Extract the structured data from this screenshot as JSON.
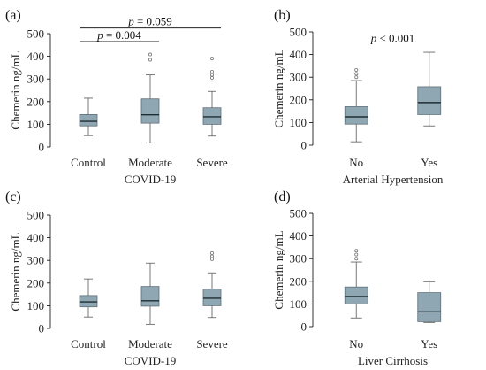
{
  "chart_data": [
    {
      "type": "box",
      "tag": "(a)",
      "ylabel": "Chemerin ng/mL",
      "xlabel": "COVID-19",
      "ylim": [
        0,
        500
      ],
      "yticks": [
        0,
        100,
        200,
        300,
        400,
        500
      ],
      "categories": [
        "Control",
        "Moderate",
        "Severe"
      ],
      "boxes": [
        {
          "min": 50,
          "q1": 93,
          "median": 113,
          "q3": 143,
          "max": 215,
          "outliers": []
        },
        {
          "min": 18,
          "q1": 105,
          "median": 142,
          "q3": 212,
          "max": 318,
          "outliers": [
            385,
            408
          ]
        },
        {
          "min": 48,
          "q1": 100,
          "median": 133,
          "q3": 173,
          "max": 245,
          "outliers": [
            305,
            318,
            332,
            390
          ]
        }
      ],
      "annotations": [
        {
          "from": 0,
          "to": 2,
          "y": 525,
          "prefix": "p",
          "text": " = 0.059"
        },
        {
          "from": 0,
          "to": 1,
          "y": 465,
          "prefix": "p",
          "text": " = 0.004"
        }
      ]
    },
    {
      "type": "box",
      "tag": "(b)",
      "ylabel": "Chemerin ng/mL",
      "xlabel": "Arterial Hypertension",
      "ylim": [
        0,
        500
      ],
      "yticks": [
        0,
        100,
        200,
        300,
        400,
        500
      ],
      "categories": [
        "No",
        "Yes"
      ],
      "boxes": [
        {
          "min": 15,
          "q1": 93,
          "median": 125,
          "q3": 170,
          "max": 285,
          "outliers": [
            300,
            315,
            332
          ]
        },
        {
          "min": 85,
          "q1": 135,
          "median": 188,
          "q3": 258,
          "max": 410,
          "outliers": []
        }
      ],
      "annotations": [
        {
          "label_only": true,
          "at": 0.5,
          "y": 455,
          "prefix": "p",
          "text": " < 0.001"
        }
      ]
    },
    {
      "type": "box",
      "tag": "(c)",
      "ylabel": "Chemerin ng/mL",
      "xlabel": "COVID-19",
      "ylim": [
        0,
        500
      ],
      "yticks": [
        0,
        100,
        200,
        300,
        400,
        500
      ],
      "categories": [
        "Control",
        "Moderate",
        "Severe"
      ],
      "boxes": [
        {
          "min": 50,
          "q1": 95,
          "median": 117,
          "q3": 145,
          "max": 218,
          "outliers": []
        },
        {
          "min": 18,
          "q1": 98,
          "median": 122,
          "q3": 185,
          "max": 288,
          "outliers": []
        },
        {
          "min": 48,
          "q1": 100,
          "median": 133,
          "q3": 173,
          "max": 245,
          "outliers": [
            305,
            318,
            332
          ]
        }
      ],
      "annotations": []
    },
    {
      "type": "box",
      "tag": "(d)",
      "ylabel": "Chemerin ng/mL",
      "xlabel": "Liver Cirrhosis",
      "ylim": [
        0,
        500
      ],
      "yticks": [
        0,
        100,
        200,
        300,
        400,
        500
      ],
      "categories": [
        "No",
        "Yes"
      ],
      "boxes": [
        {
          "min": 38,
          "q1": 100,
          "median": 133,
          "q3": 175,
          "max": 285,
          "outliers": [
            300,
            318,
            335
          ]
        },
        {
          "min": 18,
          "q1": 22,
          "median": 65,
          "q3": 150,
          "max": 198,
          "outliers": []
        }
      ],
      "annotations": []
    }
  ]
}
